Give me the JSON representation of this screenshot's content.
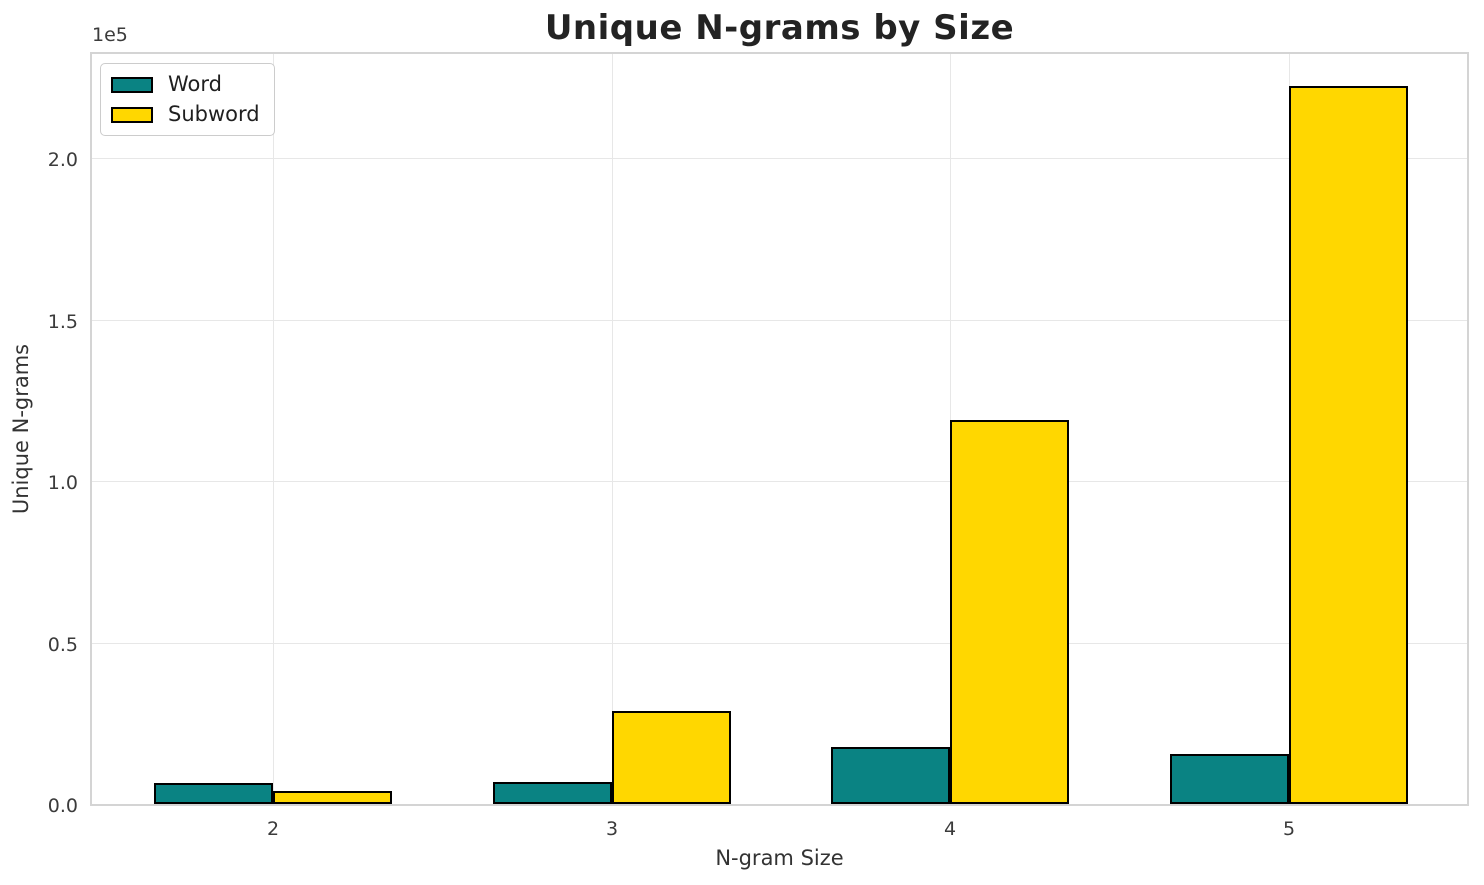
{
  "chart_data": {
    "type": "bar",
    "title": "Unique N-grams by Size",
    "xlabel": "N-gram Size",
    "ylabel": "Unique N-grams",
    "y_offset_text": "1e5",
    "categories": [
      "2",
      "3",
      "4",
      "5"
    ],
    "series": [
      {
        "name": "Word",
        "color": "#0a8383",
        "values": [
          6500,
          6700,
          17600,
          15600
        ]
      },
      {
        "name": "Subword",
        "color": "#ffd700",
        "values": [
          3900,
          28700,
          119000,
          222200
        ]
      }
    ],
    "bar_edge_color": "#000000",
    "bar_width_units": 0.35,
    "ylim": [
      0,
      233000
    ],
    "yticks": {
      "values": [
        0,
        50000,
        100000,
        150000,
        200000
      ],
      "labels": [
        "0.0",
        "0.5",
        "1.0",
        "1.5",
        "2.0"
      ]
    },
    "grid": true,
    "legend_position": "upper left"
  }
}
